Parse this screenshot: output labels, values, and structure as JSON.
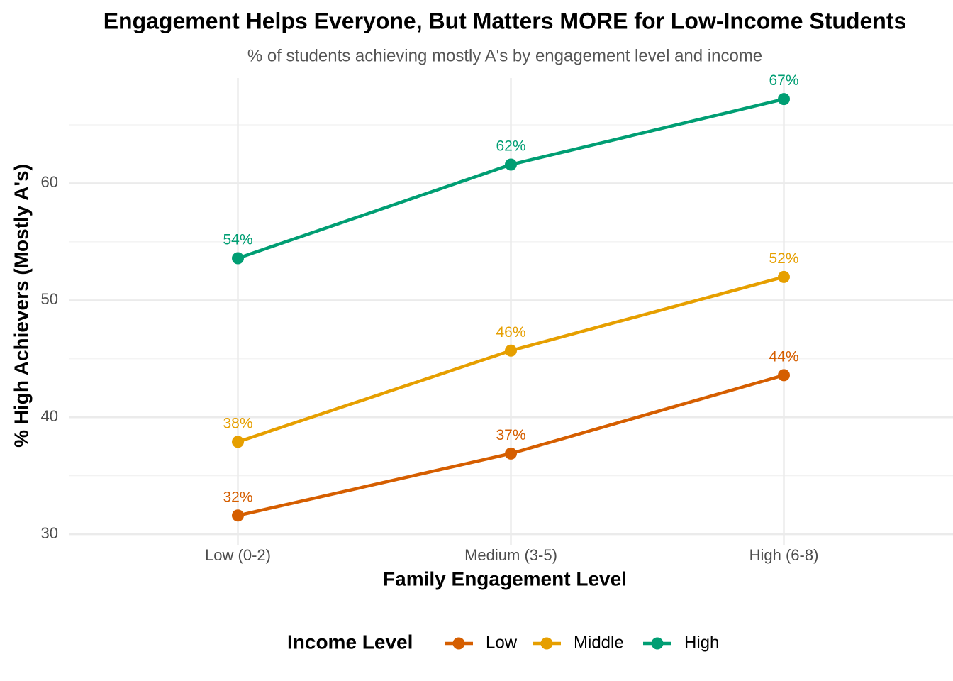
{
  "chart_data": {
    "type": "line",
    "title": "Engagement Helps Everyone, But Matters MORE for Low-Income Students",
    "subtitle": "% of students achieving mostly A's by engagement level and income",
    "x_label": "Family Engagement Level",
    "y_label": "% High Achievers (Mostly A's)",
    "legend_title": "Income Level",
    "legend_position": "bottom",
    "categories": [
      "Low (0-2)",
      "Medium (3-5)",
      "High (6-8)"
    ],
    "series": [
      {
        "name": "Low",
        "color": "#d55e00",
        "values": [
          31.6,
          36.9,
          43.6
        ],
        "value_labels": [
          "32%",
          "37%",
          "44%"
        ]
      },
      {
        "name": "Middle",
        "color": "#e69f00",
        "values": [
          37.9,
          45.7,
          52.0
        ],
        "value_labels": [
          "38%",
          "46%",
          "52%"
        ]
      },
      {
        "name": "High",
        "color": "#009e73",
        "values": [
          53.6,
          61.6,
          67.2
        ],
        "value_labels": [
          "54%",
          "62%",
          "67%"
        ]
      }
    ],
    "ylim": [
      29.1,
      69
    ],
    "yticks": [
      30,
      40,
      50,
      60
    ],
    "minor_yticks": [
      35,
      45,
      55,
      65
    ],
    "grid": true
  }
}
